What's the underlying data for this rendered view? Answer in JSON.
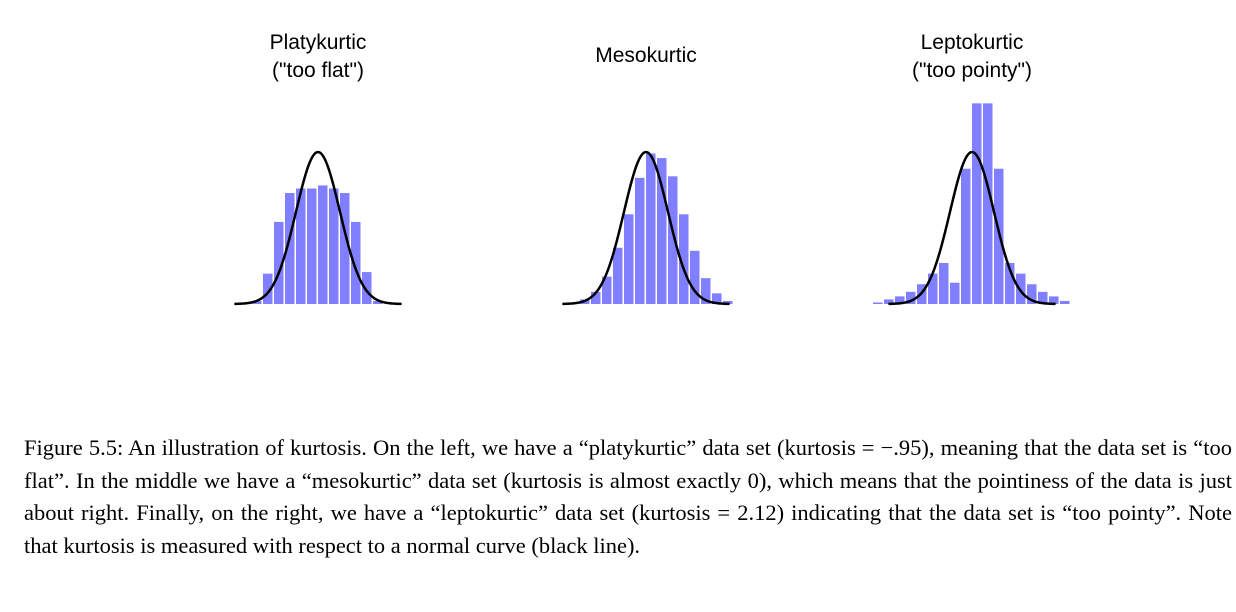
{
  "chart_data": [
    {
      "type": "bar",
      "title": [
        "Platykurtic",
        "(\"too flat\")"
      ],
      "bar_color": "#7f7fff",
      "curve_color": "#000000",
      "bars": [
        {
          "x": -2.75,
          "h": 0.02
        },
        {
          "x": -2.25,
          "h": 0.2
        },
        {
          "x": -1.75,
          "h": 0.54
        },
        {
          "x": -1.25,
          "h": 0.73
        },
        {
          "x": -0.75,
          "h": 0.76
        },
        {
          "x": -0.25,
          "h": 0.76
        },
        {
          "x": 0.25,
          "h": 0.78
        },
        {
          "x": 0.75,
          "h": 0.76
        },
        {
          "x": 1.25,
          "h": 0.73
        },
        {
          "x": 1.75,
          "h": 0.54
        },
        {
          "x": 2.25,
          "h": 0.21
        },
        {
          "x": 2.75,
          "h": 0.02
        }
      ]
    },
    {
      "type": "bar",
      "title": [
        "Mesokurtic"
      ],
      "bar_color": "#7f7fff",
      "curve_color": "#000000",
      "bars": [
        {
          "x": -2.75,
          "h": 0.03
        },
        {
          "x": -2.25,
          "h": 0.08
        },
        {
          "x": -1.75,
          "h": 0.18
        },
        {
          "x": -1.25,
          "h": 0.37
        },
        {
          "x": -0.75,
          "h": 0.59
        },
        {
          "x": -0.25,
          "h": 0.83
        },
        {
          "x": 0.25,
          "h": 0.99
        },
        {
          "x": 0.75,
          "h": 0.96
        },
        {
          "x": 1.25,
          "h": 0.84
        },
        {
          "x": 1.75,
          "h": 0.59
        },
        {
          "x": 2.25,
          "h": 0.35
        },
        {
          "x": 2.75,
          "h": 0.17
        },
        {
          "x": 3.25,
          "h": 0.07
        },
        {
          "x": 3.75,
          "h": 0.02
        }
      ]
    },
    {
      "type": "bar",
      "title": [
        "Leptokurtic",
        "(\"too pointy\")"
      ],
      "bar_color": "#7f7fff",
      "curve_color": "#000000",
      "bars": [
        {
          "x": -4.25,
          "h": 0.01
        },
        {
          "x": -3.75,
          "h": 0.03
        },
        {
          "x": -3.25,
          "h": 0.05
        },
        {
          "x": -2.75,
          "h": 0.08
        },
        {
          "x": -2.25,
          "h": 0.13
        },
        {
          "x": -1.75,
          "h": 0.2
        },
        {
          "x": -1.25,
          "h": 0.27
        },
        {
          "x": -0.75,
          "h": 0.14
        },
        {
          "x": -0.25,
          "h": 0.89
        },
        {
          "x": 0.25,
          "h": 1.32
        },
        {
          "x": 0.75,
          "h": 1.32
        },
        {
          "x": 1.25,
          "h": 0.89
        },
        {
          "x": 1.75,
          "h": 0.27
        },
        {
          "x": 2.25,
          "h": 0.2
        },
        {
          "x": 2.75,
          "h": 0.13
        },
        {
          "x": 3.25,
          "h": 0.08
        },
        {
          "x": 3.75,
          "h": 0.05
        },
        {
          "x": 4.25,
          "h": 0.02
        }
      ]
    }
  ],
  "caption": "Figure 5.5: An illustration of kurtosis. On the left, we have a “platykurtic” data set (kurtosis = −.95), meaning that the data set is “too flat”. In the middle we have a “mesokurtic” data set (kurtosis is almost exactly 0), which means that the pointiness of the data is just about right. Finally, on the right, we have a “leptokurtic” data set (kurtosis = 2.12) indicating that the data set is “too pointy”. Note that kurtosis is measured with respect to a normal curve (black line)."
}
